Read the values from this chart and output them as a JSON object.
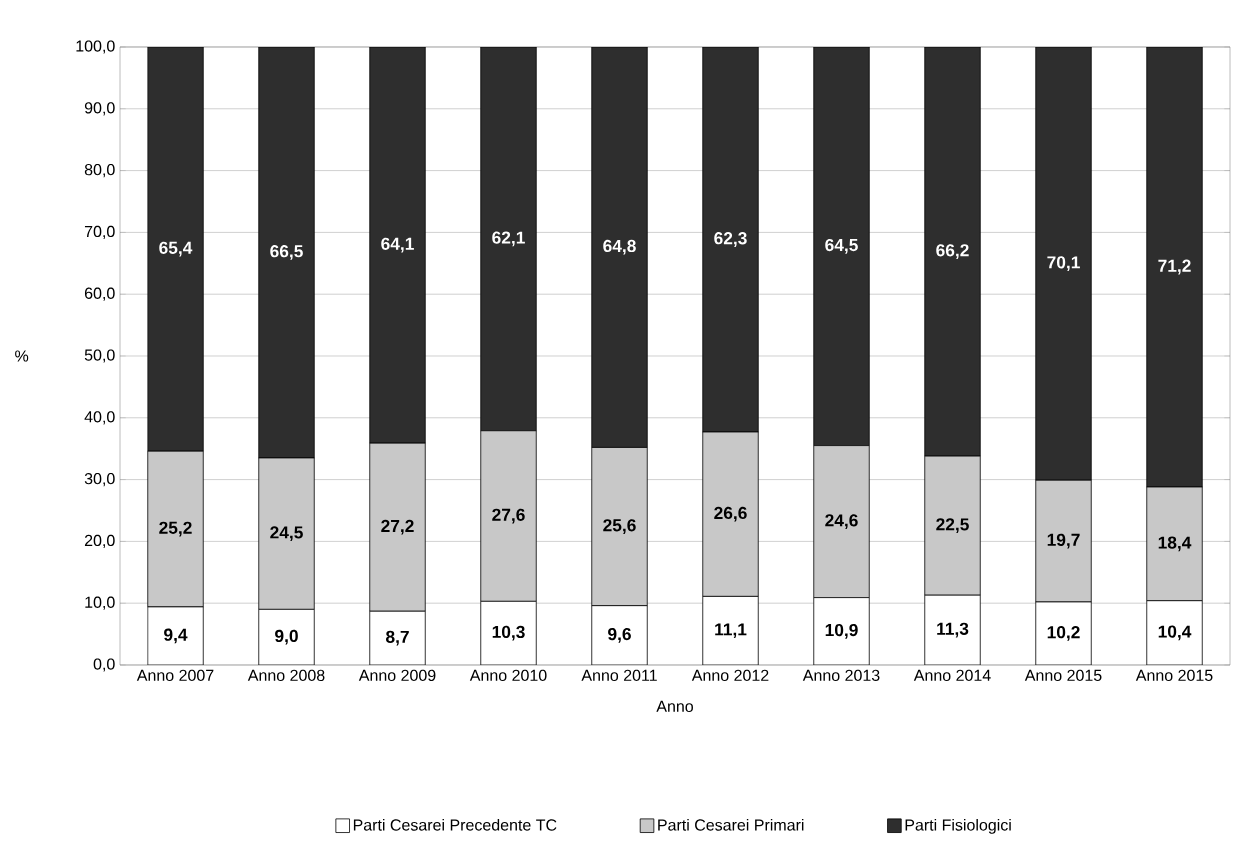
{
  "chart_data": {
    "type": "bar",
    "stacked": true,
    "xlabel": "Anno",
    "ylabel": "%",
    "categories": [
      "Anno 2007",
      "Anno 2008",
      "Anno 2009",
      "Anno 2010",
      "Anno 2011",
      "Anno 2012",
      "Anno 2013",
      "Anno 2014",
      "Anno 2015",
      "Anno 2015"
    ],
    "series": [
      {
        "name": "Parti Cesarei Precedente TC",
        "color": "#ffffff",
        "values": [
          9.4,
          9.0,
          8.7,
          10.3,
          9.6,
          11.1,
          10.9,
          11.3,
          10.2,
          10.4
        ],
        "value_labels": [
          "9,4",
          "9,0",
          "8,7",
          "10,3",
          "9,6",
          "11,1",
          "10,9",
          "11,3",
          "10,2",
          "10,4"
        ]
      },
      {
        "name": "Parti Cesarei Primari",
        "color": "#c8c8c8",
        "values": [
          25.2,
          24.5,
          27.2,
          27.6,
          25.6,
          26.6,
          24.6,
          22.5,
          19.7,
          18.4
        ],
        "value_labels": [
          "25,2",
          "24,5",
          "27,2",
          "27,6",
          "25,6",
          "26,6",
          "24,6",
          "22,5",
          "19,7",
          "18,4"
        ]
      },
      {
        "name": "Parti Fisiologici",
        "color": "#2e2e2e",
        "values": [
          65.4,
          66.5,
          64.1,
          62.1,
          64.8,
          62.3,
          64.5,
          66.2,
          70.1,
          71.2
        ],
        "value_labels": [
          "65,4",
          "66,5",
          "64,1",
          "62,1",
          "64,8",
          "62,3",
          "64,5",
          "66,2",
          "70,1",
          "71,2"
        ]
      }
    ],
    "ylim": [
      0,
      100
    ],
    "yticks": [
      {
        "value": 0,
        "label": "0,0"
      },
      {
        "value": 10,
        "label": "10,0"
      },
      {
        "value": 20,
        "label": "20,0"
      },
      {
        "value": 30,
        "label": "30,0"
      },
      {
        "value": 40,
        "label": "40,0"
      },
      {
        "value": 50,
        "label": "50,0"
      },
      {
        "value": 60,
        "label": "60,0"
      },
      {
        "value": 70,
        "label": "70,0"
      },
      {
        "value": 80,
        "label": "80,0"
      },
      {
        "value": 90,
        "label": "90,0"
      },
      {
        "value": 100,
        "label": "100,0"
      }
    ],
    "grid": "y",
    "legend": "bottom"
  }
}
